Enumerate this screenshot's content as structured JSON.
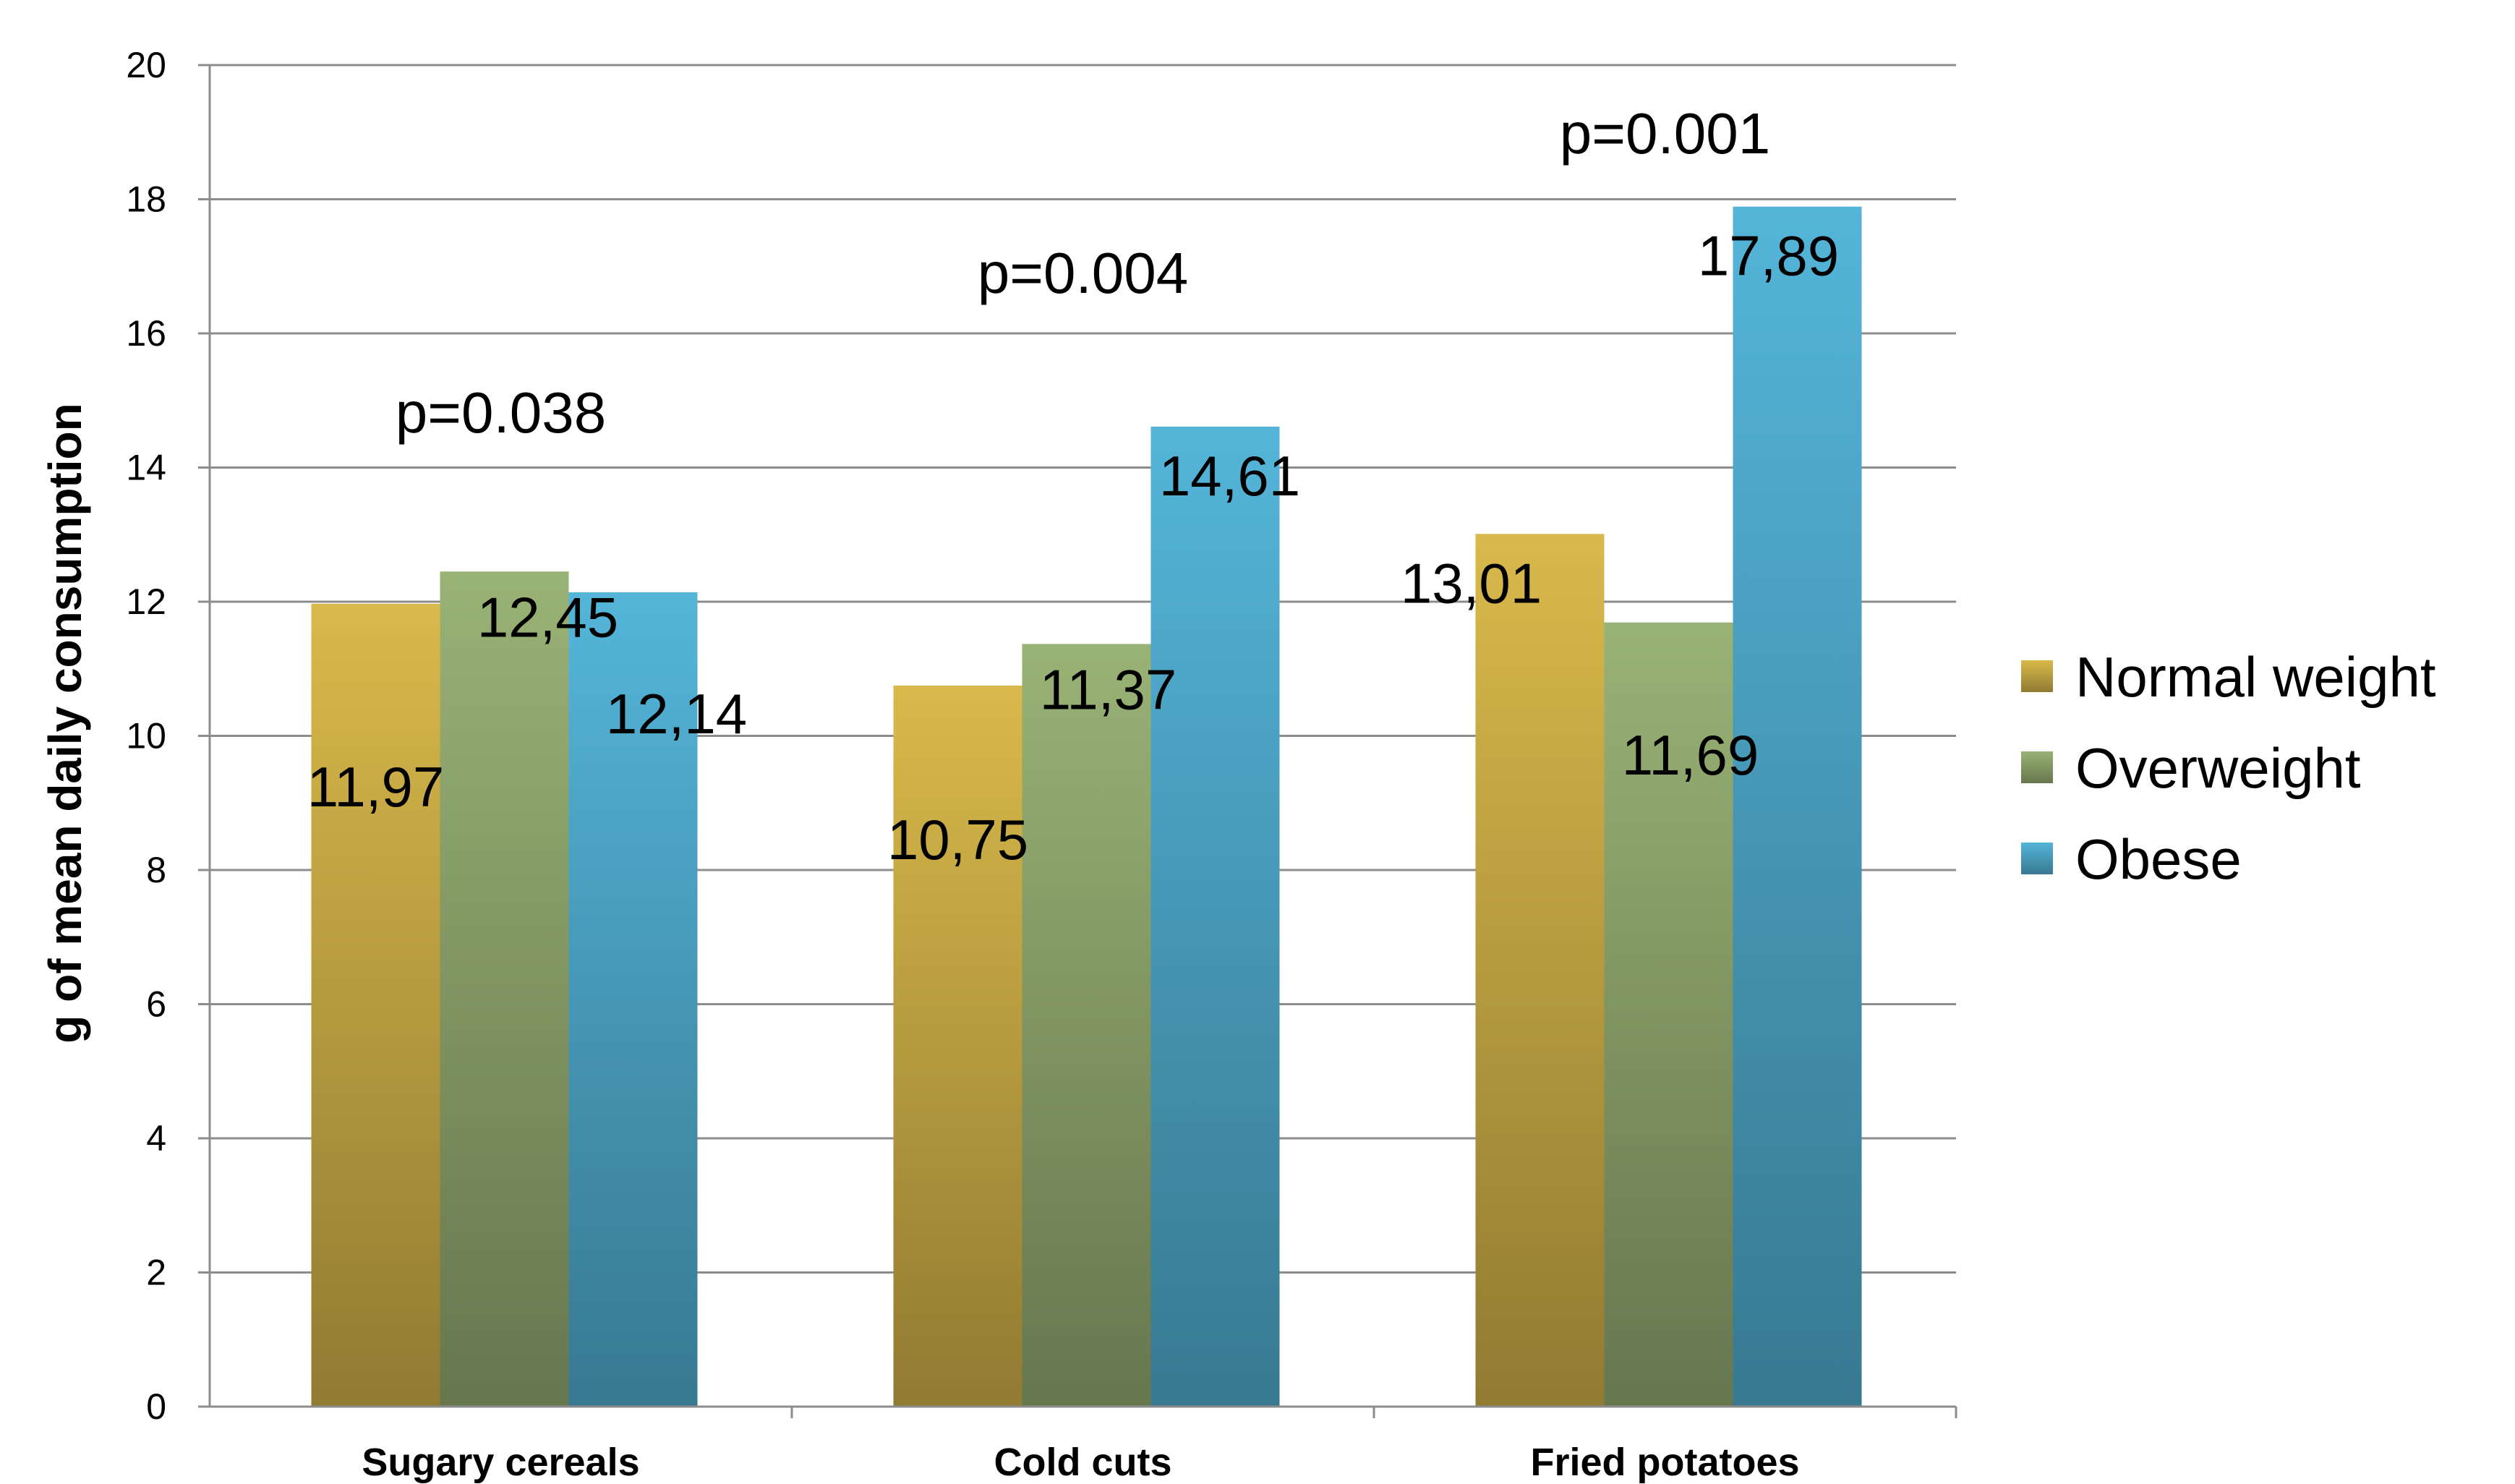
{
  "chart_data": {
    "type": "bar",
    "categories": [
      "Sugary cereals",
      "Cold cuts",
      "Fried potatoes"
    ],
    "series": [
      {
        "name": "Normal weight",
        "values": [
          11.97,
          10.75,
          13.01
        ],
        "labels": [
          "11,97",
          "10,75",
          "13,01"
        ],
        "color": "#c9ab45"
      },
      {
        "name": "Overweight",
        "values": [
          12.45,
          11.37,
          11.69
        ],
        "labels": [
          "12,45",
          "11,37",
          "11,69"
        ],
        "color": "#8ea56c"
      },
      {
        "name": "Obese",
        "values": [
          12.14,
          14.61,
          17.89
        ],
        "labels": [
          "12,14",
          "14,61",
          "17,89"
        ],
        "color": "#4ea8c9"
      }
    ],
    "annotations": [
      "p=0.038",
      "p=0.004",
      "p=0.001"
    ],
    "title": "",
    "xlabel": "",
    "ylabel": "g of mean daily consumption",
    "ylim": [
      0,
      20
    ],
    "yticks": [
      0,
      2,
      4,
      6,
      8,
      10,
      12,
      14,
      16,
      18,
      20
    ],
    "grid": true,
    "legend_position": "right"
  }
}
